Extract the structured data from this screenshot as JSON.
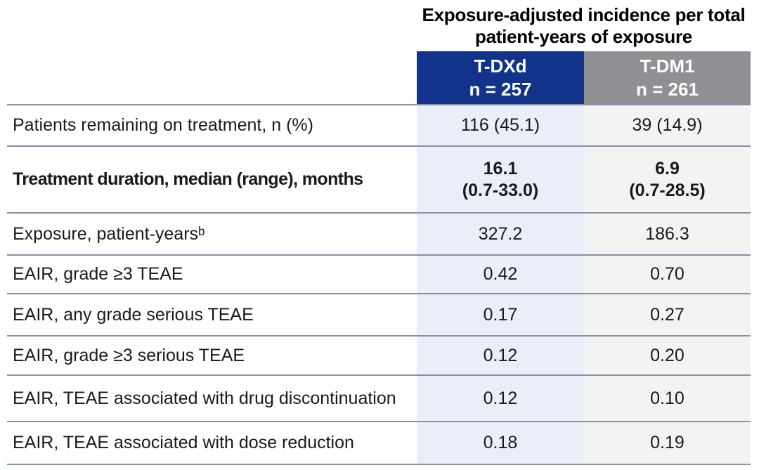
{
  "table": {
    "title": "Exposure-adjusted incidence per total patient-years of exposure",
    "columns": [
      {
        "label": "T-DXd",
        "n": "n = 257",
        "header_color": "#11338a",
        "body_color": "#e9eef8"
      },
      {
        "label": "T-DM1",
        "n": "n = 261",
        "header_color": "#8f8f94",
        "body_color": "#f3f3f2"
      }
    ],
    "rows": [
      {
        "label": "Patients remaining on treatment, n (%)",
        "bold": false,
        "values": [
          "116 (45.1)",
          "39 (14.9)"
        ]
      },
      {
        "label": "Treatment duration, median (range), months",
        "bold": true,
        "values": [
          "16.1\n(0.7-33.0)",
          "6.9\n(0.7-28.5)"
        ]
      },
      {
        "label": "Exposure, patient-yearsᵇ",
        "bold": false,
        "values": [
          "327.2",
          "186.3"
        ]
      },
      {
        "label": "EAIR, grade ≥3 TEAE",
        "bold": false,
        "values": [
          "0.42",
          "0.70"
        ]
      },
      {
        "label": "EAIR, any grade serious TEAE",
        "bold": false,
        "values": [
          "0.17",
          "0.27"
        ]
      },
      {
        "label": "EAIR, grade ≥3 serious TEAE",
        "bold": false,
        "values": [
          "0.12",
          "0.20"
        ]
      },
      {
        "label": "EAIR, TEAE associated with drug discontinuation",
        "bold": false,
        "values": [
          "0.12",
          "0.10"
        ]
      },
      {
        "label": "EAIR, TEAE associated with dose reduction",
        "bold": false,
        "values": [
          "0.18",
          "0.19"
        ]
      }
    ],
    "colors": {
      "header_blue": "#11338a",
      "header_gray": "#8f8f94",
      "body_blue": "#e9eef8",
      "body_gray": "#f3f3f2",
      "divider_line": "#8892a6",
      "text": "#1a1a1a"
    }
  }
}
